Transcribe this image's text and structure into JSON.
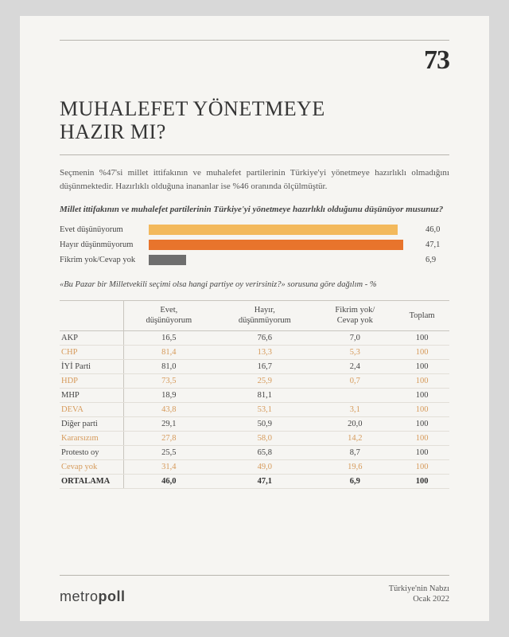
{
  "page_number": "73",
  "title_line1": "MUHALEFET YÖNETMEYE",
  "title_line2": "HAZIR MI?",
  "intro": "Seçmenin %47'si millet ittifakının ve muhalefet partilerinin Türkiye'yi yönetmeye hazırlıklı olmadığını düşünmektedir. Hazırlıklı olduğuna inananlar ise %46 oranında ölçülmüştür.",
  "question": "Millet ittifakının ve muhalefet partilerinin Türkiye'yi yönetmeye hazırlıklı olduğunu düşünüyor musunuz?",
  "chart": {
    "max": 50,
    "rows": [
      {
        "label": "Evet düşünüyorum",
        "value": "46,0",
        "pct": 92,
        "color": "#f3b95c"
      },
      {
        "label": "Hayır düşünmüyorum",
        "value": "47,1",
        "pct": 94.2,
        "color": "#e8742c"
      },
      {
        "label": "Fikrim yok/Cevap yok",
        "value": "6,9",
        "pct": 13.8,
        "color": "#6e6e6e"
      }
    ]
  },
  "sub_question": "«Bu Pazar bir Milletvekili seçimi olsa hangi partiye oy verirsiniz?» sorusuna göre dağılım - %",
  "table": {
    "headers": [
      "",
      "Evet,\ndüşünüyorum",
      "Hayır,\ndüşünmüyorum",
      "Fikrim yok/\nCevap yok",
      "Toplam"
    ],
    "rows": [
      {
        "cells": [
          "AKP",
          "16,5",
          "76,6",
          "7,0",
          "100"
        ],
        "alt": false
      },
      {
        "cells": [
          "CHP",
          "81,4",
          "13,3",
          "5,3",
          "100"
        ],
        "alt": true
      },
      {
        "cells": [
          "İYİ Parti",
          "81,0",
          "16,7",
          "2,4",
          "100"
        ],
        "alt": false
      },
      {
        "cells": [
          "HDP",
          "73,5",
          "25,9",
          "0,7",
          "100"
        ],
        "alt": true
      },
      {
        "cells": [
          "MHP",
          "18,9",
          "81,1",
          "",
          "100"
        ],
        "alt": false
      },
      {
        "cells": [
          "DEVA",
          "43,8",
          "53,1",
          "3,1",
          "100"
        ],
        "alt": true
      },
      {
        "cells": [
          "Diğer parti",
          "29,1",
          "50,9",
          "20,0",
          "100"
        ],
        "alt": false
      },
      {
        "cells": [
          "Kararsızım",
          "27,8",
          "58,0",
          "14,2",
          "100"
        ],
        "alt": true
      },
      {
        "cells": [
          "Protesto oy",
          "25,5",
          "65,8",
          "8,7",
          "100"
        ],
        "alt": false
      },
      {
        "cells": [
          "Cevap yok",
          "31,4",
          "49,0",
          "19,6",
          "100"
        ],
        "alt": true
      }
    ],
    "total": [
      "ORTALAMA",
      "46,0",
      "47,1",
      "6,9",
      "100"
    ]
  },
  "brand_light": "metro",
  "brand_bold": "poll",
  "footer_line1": "Türkiye'nin Nabzı",
  "footer_line2": "Ocak 2022"
}
